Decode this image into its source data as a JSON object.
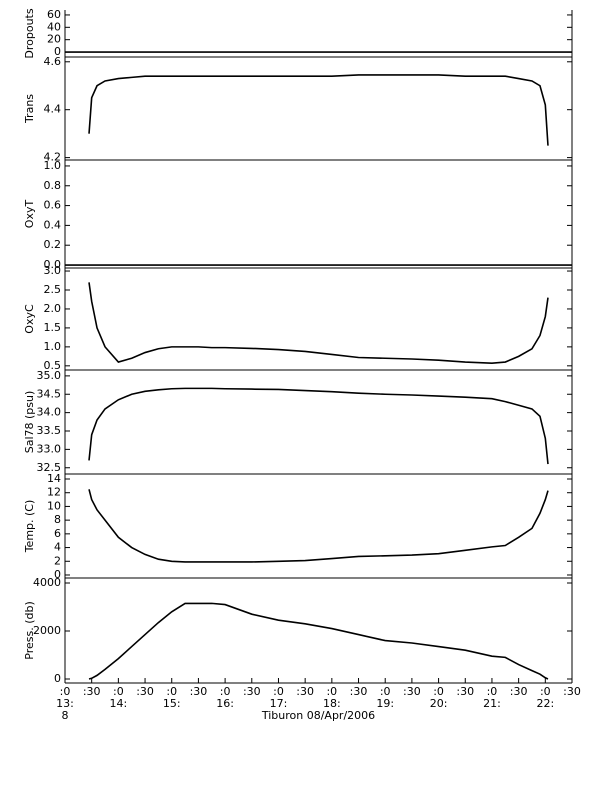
{
  "chart_data": [
    {
      "type": "line",
      "ylabel": "Dropouts",
      "xlim": [
        13,
        22.5
      ],
      "ylim": [
        -8,
        68
      ],
      "yticks": [
        0,
        20,
        40,
        60
      ],
      "x": [
        13,
        22.5
      ],
      "series": [
        {
          "color": "#000000",
          "values": [
            0,
            0
          ]
        }
      ]
    },
    {
      "type": "line",
      "ylabel": "Trans",
      "xlim": [
        13,
        22.5
      ],
      "ylim": [
        4.19,
        4.62
      ],
      "yticks": [
        4.2,
        4.4,
        4.6
      ],
      "x": [
        13.45,
        13.5,
        13.6,
        13.75,
        14,
        14.25,
        14.5,
        14.75,
        15,
        15.25,
        15.5,
        15.75,
        16,
        16.5,
        17,
        17.5,
        18,
        18.5,
        19,
        19.5,
        20,
        20.5,
        21,
        21.25,
        21.5,
        21.75,
        21.9,
        22.0,
        22.05
      ],
      "series": [
        {
          "color": "#000000",
          "values": [
            4.3,
            4.45,
            4.5,
            4.52,
            4.53,
            4.535,
            4.54,
            4.54,
            4.54,
            4.54,
            4.54,
            4.54,
            4.54,
            4.54,
            4.54,
            4.54,
            4.54,
            4.545,
            4.545,
            4.545,
            4.545,
            4.54,
            4.54,
            4.54,
            4.53,
            4.52,
            4.5,
            4.42,
            4.25
          ]
        }
      ]
    },
    {
      "type": "line",
      "ylabel": "OxyT",
      "xlim": [
        13,
        22.5
      ],
      "ylim": [
        -0.03,
        1.06
      ],
      "yticks": [
        {
          "value": 0,
          "label": "0.0"
        },
        0.2,
        0.4,
        0.6,
        0.8,
        {
          "value": 1,
          "label": "1.0"
        }
      ],
      "x": [
        13,
        22.5
      ],
      "series": [
        {
          "color": "#000000",
          "values": [
            0,
            0
          ]
        }
      ]
    },
    {
      "type": "line",
      "ylabel": "OxyC",
      "xlim": [
        13,
        22.5
      ],
      "ylim": [
        0.39,
        3.08
      ],
      "yticks": [
        0.5,
        {
          "value": 1,
          "label": "1.0"
        },
        1.5,
        {
          "value": 2,
          "label": "2.0"
        },
        2.5,
        {
          "value": 3,
          "label": "3.0"
        }
      ],
      "x": [
        13.45,
        13.5,
        13.6,
        13.75,
        14,
        14.25,
        14.5,
        14.75,
        15,
        15.25,
        15.5,
        15.75,
        16,
        16.5,
        17,
        17.5,
        18,
        18.5,
        19,
        19.5,
        20,
        20.5,
        21,
        21.25,
        21.5,
        21.75,
        21.9,
        22.0,
        22.05
      ],
      "series": [
        {
          "color": "#000000",
          "values": [
            2.7,
            2.2,
            1.5,
            1.0,
            0.6,
            0.7,
            0.85,
            0.95,
            1.0,
            1.0,
            1.0,
            0.98,
            0.98,
            0.96,
            0.93,
            0.88,
            0.8,
            0.72,
            0.7,
            0.68,
            0.65,
            0.6,
            0.57,
            0.6,
            0.75,
            0.95,
            1.3,
            1.8,
            2.3
          ]
        }
      ]
    },
    {
      "type": "line",
      "ylabel": "Sal78 (psu)",
      "xlim": [
        13,
        22.5
      ],
      "ylim": [
        32.33,
        35.16
      ],
      "yticks": [
        32.5,
        {
          "value": 33,
          "label": "33.0"
        },
        33.5,
        {
          "value": 34,
          "label": "34.0"
        },
        34.5,
        {
          "value": 35,
          "label": "35.0"
        }
      ],
      "x": [
        13.45,
        13.5,
        13.6,
        13.75,
        14,
        14.25,
        14.5,
        14.75,
        15,
        15.25,
        15.5,
        15.75,
        16,
        16.5,
        17,
        17.5,
        18,
        18.5,
        19,
        19.5,
        20,
        20.5,
        21,
        21.25,
        21.5,
        21.75,
        21.9,
        22.0,
        22.05
      ],
      "series": [
        {
          "color": "#000000",
          "values": [
            32.7,
            33.4,
            33.8,
            34.1,
            34.35,
            34.5,
            34.58,
            34.62,
            34.65,
            34.66,
            34.66,
            34.66,
            34.65,
            34.64,
            34.63,
            34.6,
            34.57,
            34.53,
            34.5,
            34.48,
            34.45,
            34.42,
            34.38,
            34.3,
            34.2,
            34.1,
            33.9,
            33.3,
            32.6
          ]
        }
      ]
    },
    {
      "type": "line",
      "ylabel": "Temp. (C)",
      "xlim": [
        13,
        22.5
      ],
      "ylim": [
        -0.44,
        14.73
      ],
      "yticks": [
        0,
        2,
        4,
        6,
        8,
        10,
        12,
        14
      ],
      "x": [
        13.45,
        13.5,
        13.6,
        13.75,
        14,
        14.25,
        14.5,
        14.75,
        15,
        15.25,
        15.5,
        15.75,
        16,
        16.5,
        17,
        17.5,
        18,
        18.5,
        19,
        19.5,
        20,
        20.5,
        21,
        21.25,
        21.5,
        21.75,
        21.9,
        22.0,
        22.05
      ],
      "series": [
        {
          "color": "#000000",
          "values": [
            12.5,
            11,
            9.5,
            8,
            5.5,
            4,
            3,
            2.3,
            2,
            1.9,
            1.9,
            1.9,
            1.9,
            1.9,
            2.0,
            2.1,
            2.4,
            2.7,
            2.8,
            2.9,
            3.1,
            3.6,
            4.1,
            4.3,
            5.5,
            6.8,
            9,
            11,
            12.3
          ]
        }
      ]
    },
    {
      "type": "line",
      "ylabel": "Press. (db)",
      "xlim": [
        13,
        22.5
      ],
      "ylim": [
        -167,
        4208
      ],
      "yticks": [
        0,
        2000,
        4000
      ],
      "x": [
        13.45,
        13.5,
        13.6,
        13.75,
        14,
        14.25,
        14.5,
        14.75,
        15,
        15.25,
        15.5,
        15.75,
        16,
        16.5,
        17,
        17.5,
        18,
        18.5,
        19,
        19.5,
        20,
        20.5,
        21,
        21.25,
        21.5,
        21.75,
        21.9,
        22.0,
        22.05
      ],
      "series": [
        {
          "color": "#000000",
          "values": [
            0,
            30,
            150,
            400,
            850,
            1350,
            1850,
            2350,
            2800,
            3150,
            3150,
            3150,
            3100,
            2700,
            2450,
            2300,
            2100,
            1850,
            1600,
            1500,
            1350,
            1200,
            950,
            900,
            600,
            350,
            200,
            50,
            0
          ]
        }
      ],
      "xticks": [
        {
          "value": 13,
          "label": ":0"
        },
        {
          "value": 13.5,
          "label": ":30"
        },
        {
          "value": 14,
          "label": ":0"
        },
        {
          "value": 14.5,
          "label": ":30"
        },
        {
          "value": 15,
          "label": ":0"
        },
        {
          "value": 15.5,
          "label": ":30"
        },
        {
          "value": 16,
          "label": ":0"
        },
        {
          "value": 16.5,
          "label": ":30"
        },
        {
          "value": 17,
          "label": ":0"
        },
        {
          "value": 17.5,
          "label": ":30"
        },
        {
          "value": 18,
          "label": ":0"
        },
        {
          "value": 18.5,
          "label": ":30"
        },
        {
          "value": 19,
          "label": ":0"
        },
        {
          "value": 19.5,
          "label": ":30"
        },
        {
          "value": 20,
          "label": ":0"
        },
        {
          "value": 20.5,
          "label": ":30"
        },
        {
          "value": 21,
          "label": ":0"
        },
        {
          "value": 21.5,
          "label": ":30"
        },
        {
          "value": 22,
          "label": ":0"
        },
        {
          "value": 22.5,
          "label": ":30"
        }
      ],
      "hour_labels": [
        {
          "value": 13,
          "label": "13:"
        },
        {
          "value": 14,
          "label": "14:"
        },
        {
          "value": 15,
          "label": "15:"
        },
        {
          "value": 16,
          "label": "16:"
        },
        {
          "value": 17,
          "label": "17:"
        },
        {
          "value": 18,
          "label": "18:"
        },
        {
          "value": 19,
          "label": "19:"
        },
        {
          "value": 20,
          "label": "20:"
        },
        {
          "value": 21,
          "label": "21:"
        },
        {
          "value": 22,
          "label": "22:"
        }
      ],
      "day_labels": [
        {
          "value": 13,
          "label": "8"
        }
      ],
      "xlabel": "Tiburon 08/Apr/2006"
    }
  ]
}
